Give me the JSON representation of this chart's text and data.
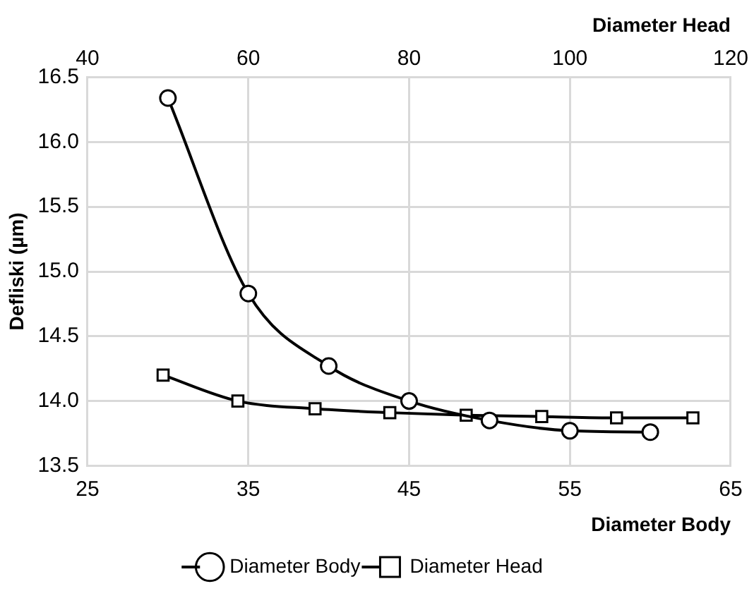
{
  "chart_data": {
    "type": "line",
    "xlabel": "Diameter Body",
    "x2label": "Diameter Head",
    "ylabel": "Defliski (µm)",
    "xlim": [
      25,
      65
    ],
    "xticks": [
      25,
      35,
      45,
      55,
      65
    ],
    "x2lim": [
      40,
      120
    ],
    "x2ticks": [
      40,
      60,
      80,
      100,
      120
    ],
    "ylim": [
      13.5,
      16.5
    ],
    "yticks": [
      13.5,
      {
        "value": 14,
        "label": "14.0"
      },
      14.5,
      {
        "value": 15,
        "label": "15.0"
      },
      15.5,
      {
        "value": 16,
        "label": "16.0"
      },
      16.5
    ],
    "grid": true,
    "legend": "bottom",
    "line_style": "solid",
    "series": [
      {
        "name": "Diameter Body",
        "color": "#000000",
        "marker": "circle",
        "x": [
          30,
          35,
          40,
          45,
          50,
          55,
          60
        ],
        "values": [
          16.34,
          14.83,
          14.27,
          14.0,
          13.85,
          13.77,
          13.76
        ]
      },
      {
        "name": "Diameter Head",
        "color": "#000000",
        "marker": "square",
        "axis": "x2",
        "x": [
          49.4,
          58.7,
          68.3,
          77.6,
          87.1,
          96.5,
          105.8,
          115.3
        ],
        "values": [
          14.2,
          14.0,
          13.94,
          13.91,
          13.89,
          13.88,
          13.87,
          13.87
        ]
      }
    ]
  }
}
